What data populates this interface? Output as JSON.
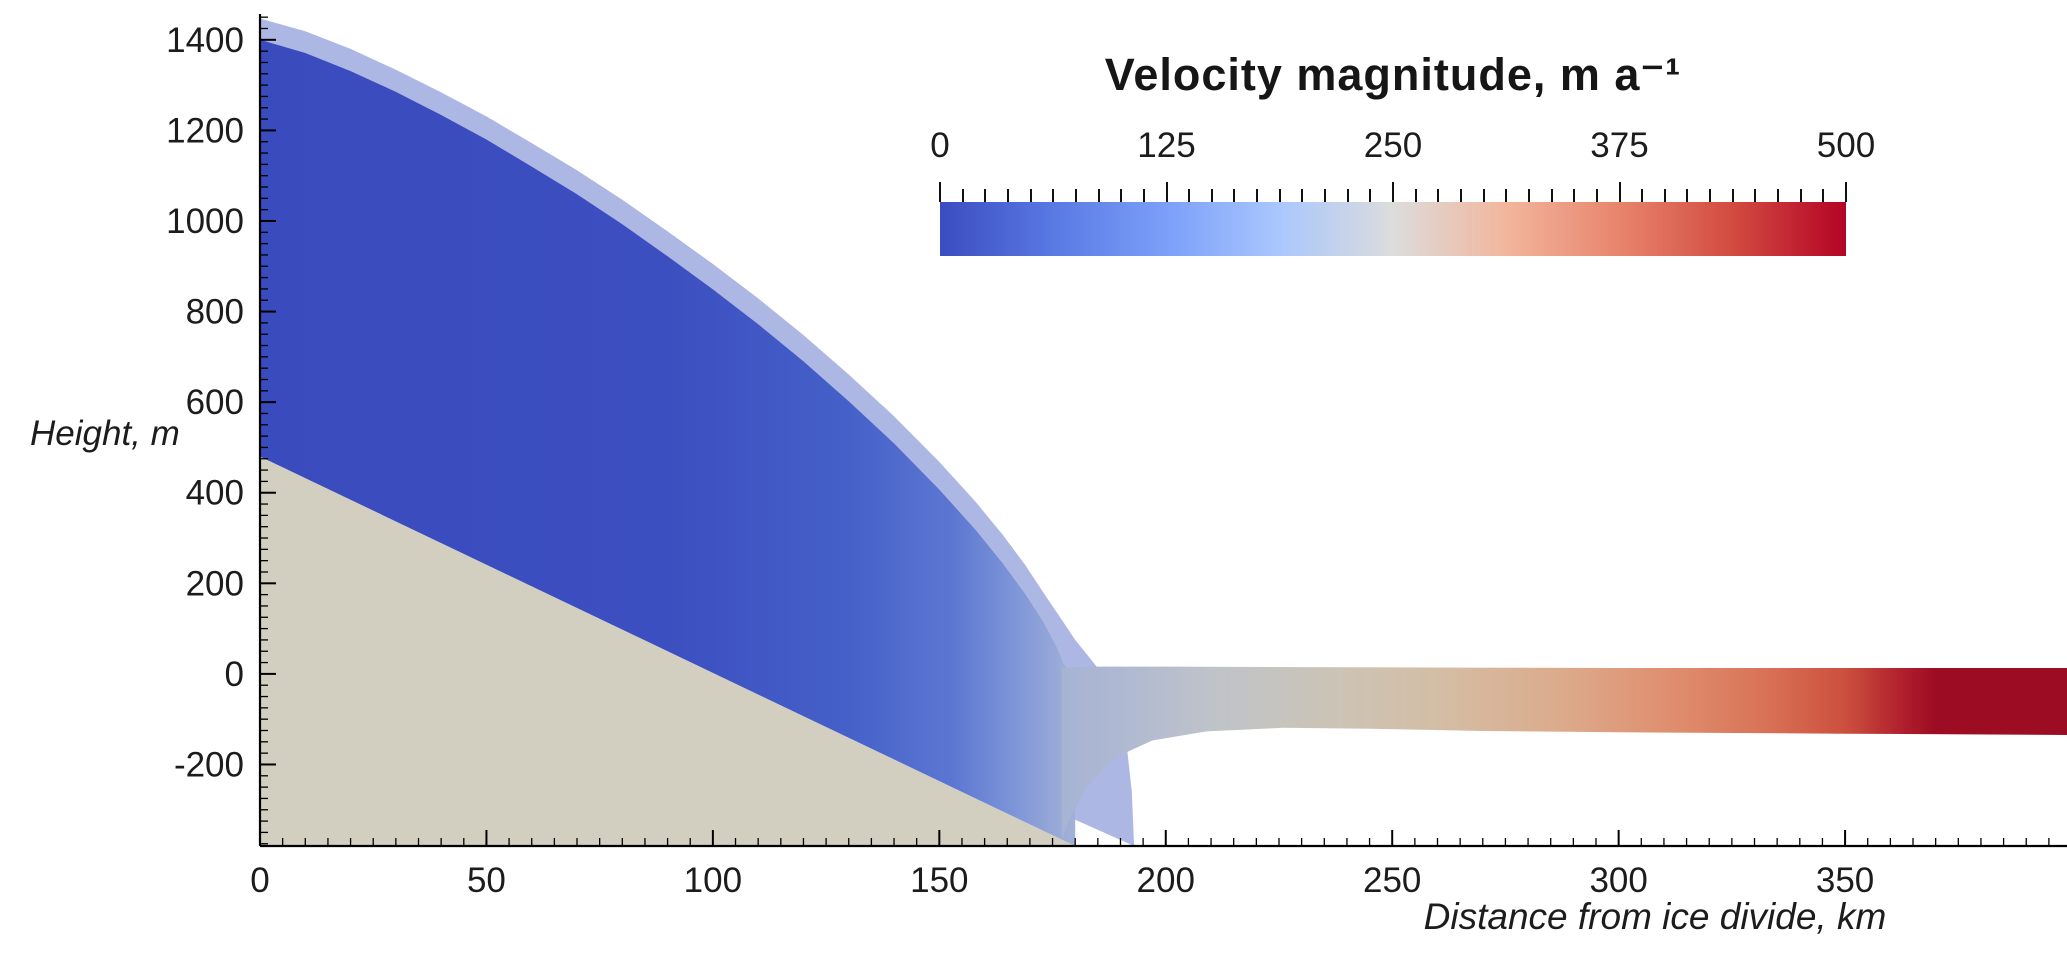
{
  "figure": {
    "background": "#ffffff",
    "text_color": "#1c1c1c"
  },
  "chart_data": {
    "type": "area",
    "title": "Velocity magnitude, m  a⁻¹",
    "xlabel": "Distance from ice divide, km",
    "ylabel": "Height, m",
    "xlim": [
      0,
      399
    ],
    "ylim": [
      -380,
      1457
    ],
    "x_ticks": [
      0,
      50,
      100,
      150,
      200,
      250,
      300,
      350
    ],
    "y_ticks": [
      -200,
      0,
      200,
      400,
      600,
      800,
      1000,
      1200,
      1400
    ],
    "x_minor_step_km": 5,
    "y_minor_step_m": 25,
    "grid": false,
    "legend_position": "none",
    "colorbar": {
      "title": "Velocity magnitude, m  a⁻¹",
      "ticks": [
        "0",
        "125",
        "250",
        "375",
        "500"
      ],
      "min": 0,
      "max": 500,
      "colormap": "cool-warm diverging (blue-grey-red)",
      "minor_tick_count": 41,
      "stops": [
        {
          "p": 0,
          "c": "#3b4cc0"
        },
        {
          "p": 0.125,
          "c": "#5979e3"
        },
        {
          "p": 0.25,
          "c": "#7c9ff9"
        },
        {
          "p": 0.375,
          "c": "#aac7fd"
        },
        {
          "p": 0.5,
          "c": "#dcdcdc"
        },
        {
          "p": 0.625,
          "c": "#f2b69d"
        },
        {
          "p": 0.75,
          "c": "#e8846c"
        },
        {
          "p": 0.875,
          "c": "#d24b40"
        },
        {
          "p": 1,
          "c": "#b40426"
        }
      ]
    },
    "series": [
      {
        "name": "bedrock",
        "fill": "#d2cfc0",
        "polygon": [
          [
            0,
            480
          ],
          [
            0,
            -380
          ],
          [
            180,
            -380
          ]
        ]
      },
      {
        "name": "ice-sheet-outline",
        "fill": "#4a5fc4",
        "opacity": 0.45,
        "polygon": [
          [
            0,
            1447
          ],
          [
            10,
            1419
          ],
          [
            20,
            1380
          ],
          [
            30,
            1334
          ],
          [
            40,
            1284
          ],
          [
            50,
            1231
          ],
          [
            60,
            1172
          ],
          [
            70,
            1112
          ],
          [
            80,
            1047
          ],
          [
            90,
            977
          ],
          [
            100,
            905
          ],
          [
            110,
            829
          ],
          [
            120,
            748
          ],
          [
            130,
            661
          ],
          [
            140,
            569
          ],
          [
            150,
            468
          ],
          [
            158,
            380
          ],
          [
            164,
            307
          ],
          [
            169,
            240
          ],
          [
            173,
            179
          ],
          [
            177,
            120
          ],
          [
            180,
            75
          ],
          [
            183,
            38
          ],
          [
            186,
            0
          ],
          [
            188,
            -45
          ],
          [
            190,
            -100
          ],
          [
            191.5,
            -170
          ],
          [
            192.5,
            -260
          ],
          [
            193,
            -380
          ],
          [
            0,
            480
          ]
        ]
      },
      {
        "name": "grounded-ice-dome",
        "gradient": [
          {
            "p": 0,
            "c": "#3a4bbd"
          },
          {
            "p": 0.5,
            "c": "#3c4fc0"
          },
          {
            "p": 0.72,
            "c": "#4560c8"
          },
          {
            "p": 0.85,
            "c": "#5c77d2"
          },
          {
            "p": 0.93,
            "c": "#8097d8"
          },
          {
            "p": 1,
            "c": "#a3b2d6"
          }
        ],
        "gradient_x_range_km": [
          0,
          180
        ],
        "polygon": [
          [
            0,
            1400
          ],
          [
            10,
            1371
          ],
          [
            20,
            1331
          ],
          [
            30,
            1285
          ],
          [
            40,
            1234
          ],
          [
            50,
            1180
          ],
          [
            60,
            1120
          ],
          [
            70,
            1059
          ],
          [
            80,
            993
          ],
          [
            90,
            922
          ],
          [
            100,
            849
          ],
          [
            110,
            772
          ],
          [
            120,
            690
          ],
          [
            130,
            602
          ],
          [
            140,
            509
          ],
          [
            150,
            407
          ],
          [
            158,
            318
          ],
          [
            164,
            244
          ],
          [
            169,
            176
          ],
          [
            173,
            114
          ],
          [
            176,
            57
          ],
          [
            177.5,
            20
          ],
          [
            179,
            7
          ],
          [
            180,
            5
          ],
          [
            180,
            -380
          ],
          [
            0,
            480
          ]
        ]
      },
      {
        "name": "floating-ice-shelf",
        "gradient": [
          {
            "p": 0,
            "c": "#a6b3d3"
          },
          {
            "p": 0.05,
            "c": "#adb8d2"
          },
          {
            "p": 0.15,
            "c": "#bfc3c9"
          },
          {
            "p": 0.27,
            "c": "#cbc4b6"
          },
          {
            "p": 0.38,
            "c": "#d4bda4"
          },
          {
            "p": 0.5,
            "c": "#dcaa8b"
          },
          {
            "p": 0.6,
            "c": "#df9070"
          },
          {
            "p": 0.7,
            "c": "#d97257"
          },
          {
            "p": 0.78,
            "c": "#cc4f3d"
          },
          {
            "p": 0.84,
            "c": "#ae1c2c"
          },
          {
            "p": 0.87,
            "c": "#9c0c22"
          },
          {
            "p": 1,
            "c": "#9c0c22"
          }
        ],
        "gradient_x_range_km": [
          177,
          399
        ],
        "polygon": [
          [
            177,
            14
          ],
          [
            185,
            16
          ],
          [
            200,
            16
          ],
          [
            230,
            15
          ],
          [
            265,
            14
          ],
          [
            300,
            13
          ],
          [
            350,
            13
          ],
          [
            399,
            13
          ],
          [
            399,
            -135
          ],
          [
            350,
            -132
          ],
          [
            300,
            -129
          ],
          [
            270,
            -126
          ],
          [
            245,
            -121
          ],
          [
            226,
            -119
          ],
          [
            209,
            -127
          ],
          [
            197,
            -147
          ],
          [
            189,
            -184
          ],
          [
            183,
            -244
          ],
          [
            179,
            -314
          ],
          [
            177,
            -368
          ]
        ]
      }
    ],
    "axis": {
      "color": "#000000",
      "major_tick_len": 16,
      "minor_tick_len": 8
    }
  }
}
